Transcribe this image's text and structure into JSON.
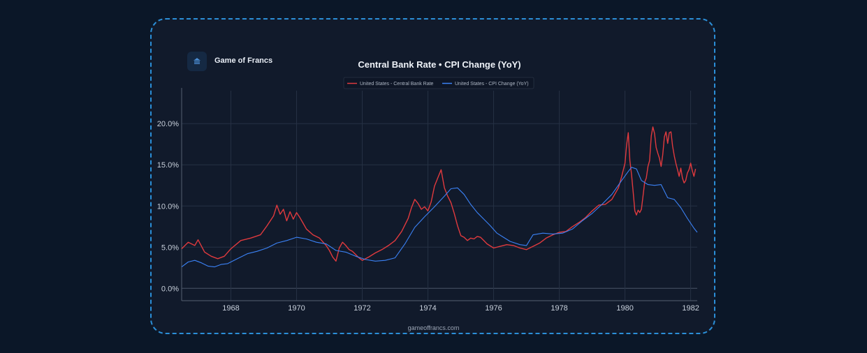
{
  "brand": {
    "name": "Game of Francs",
    "logo_icon": "game-of-francs-logo-icon"
  },
  "footer": {
    "text": "gameoffrancs.com"
  },
  "colors": {
    "background": "#0b1728",
    "panel": "#111a2b",
    "frame_border": "#2b8fd8",
    "central_bank_rate": "#e03a3e",
    "cpi_change": "#3b82f6",
    "grid": "#263144",
    "text": "#c9d1dc"
  },
  "chart_data": {
    "type": "line",
    "title": "Central Bank Rate • CPI Change (YoY)",
    "xlabel": "",
    "ylabel": "",
    "xlim": [
      1966.5,
      1982.2
    ],
    "ylim": [
      -1.5,
      24.0
    ],
    "x_ticks": [
      1968,
      1970,
      1972,
      1974,
      1976,
      1978,
      1980,
      1982
    ],
    "y_ticks": [
      0,
      5,
      10,
      15,
      20
    ],
    "y_tick_labels": [
      "0.0%",
      "5.0%",
      "10.0%",
      "15.0%",
      "20.0%"
    ],
    "grid": true,
    "legend": "top-center",
    "series": [
      {
        "name": "United States - Central Bank Rate",
        "color": "#e03a3e",
        "x": [
          1966.5,
          1966.7,
          1966.9,
          1967.0,
          1967.2,
          1967.4,
          1967.6,
          1967.8,
          1968.0,
          1968.3,
          1968.6,
          1968.9,
          1969.1,
          1969.3,
          1969.4,
          1969.5,
          1969.6,
          1969.7,
          1969.8,
          1969.9,
          1970.0,
          1970.1,
          1970.2,
          1970.3,
          1970.5,
          1970.7,
          1970.9,
          1971.0,
          1971.1,
          1971.2,
          1971.3,
          1971.4,
          1971.5,
          1971.6,
          1971.7,
          1971.8,
          1971.9,
          1972.0,
          1972.2,
          1972.4,
          1972.6,
          1972.8,
          1973.0,
          1973.2,
          1973.4,
          1973.5,
          1973.6,
          1973.7,
          1973.8,
          1973.9,
          1974.0,
          1974.1,
          1974.2,
          1974.3,
          1974.4,
          1974.5,
          1974.6,
          1974.7,
          1974.8,
          1974.9,
          1975.0,
          1975.1,
          1975.2,
          1975.3,
          1975.4,
          1975.5,
          1975.6,
          1975.7,
          1975.8,
          1976.0,
          1976.2,
          1976.4,
          1976.6,
          1976.8,
          1977.0,
          1977.2,
          1977.4,
          1977.6,
          1977.8,
          1978.0,
          1978.2,
          1978.4,
          1978.6,
          1978.8,
          1979.0,
          1979.2,
          1979.4,
          1979.6,
          1979.7,
          1979.8,
          1979.9,
          1980.0,
          1980.05,
          1980.1,
          1980.15,
          1980.2,
          1980.25,
          1980.3,
          1980.35,
          1980.4,
          1980.45,
          1980.5,
          1980.55,
          1980.6,
          1980.65,
          1980.7,
          1980.75,
          1980.8,
          1980.85,
          1980.9,
          1980.95,
          1981.0,
          1981.05,
          1981.1,
          1981.15,
          1981.2,
          1981.25,
          1981.3,
          1981.35,
          1981.4,
          1981.45,
          1981.5,
          1981.55,
          1981.6,
          1981.65,
          1981.7,
          1981.75,
          1981.8,
          1981.85,
          1981.9,
          1981.95,
          1982.0,
          1982.05,
          1982.1,
          1982.15
        ],
        "values": [
          4.8,
          5.6,
          5.2,
          5.9,
          4.4,
          3.9,
          3.6,
          3.9,
          4.8,
          5.8,
          6.1,
          6.5,
          7.6,
          8.8,
          10.1,
          9.0,
          9.6,
          8.2,
          9.3,
          8.4,
          9.2,
          8.6,
          7.9,
          7.2,
          6.5,
          6.1,
          5.2,
          4.6,
          3.8,
          3.3,
          4.9,
          5.6,
          5.2,
          4.7,
          4.5,
          4.1,
          3.7,
          3.4,
          3.8,
          4.3,
          4.7,
          5.2,
          5.8,
          6.9,
          8.5,
          9.8,
          10.8,
          10.3,
          9.6,
          9.9,
          9.4,
          10.5,
          12.4,
          13.4,
          14.4,
          12.2,
          11.2,
          10.4,
          9.1,
          7.6,
          6.4,
          6.2,
          5.8,
          6.1,
          6.0,
          6.3,
          6.2,
          5.8,
          5.4,
          4.9,
          5.1,
          5.3,
          5.2,
          4.9,
          4.7,
          5.1,
          5.5,
          6.1,
          6.5,
          6.8,
          6.9,
          7.5,
          8.0,
          8.6,
          9.4,
          10.1,
          10.2,
          10.8,
          11.5,
          12.2,
          13.6,
          15.2,
          17.4,
          18.9,
          15.5,
          13.8,
          11.7,
          9.4,
          8.9,
          9.5,
          9.2,
          9.6,
          11.2,
          12.9,
          13.4,
          14.8,
          15.5,
          18.5,
          19.6,
          18.8,
          17.1,
          16.4,
          15.8,
          14.8,
          16.2,
          18.4,
          19.0,
          17.6,
          18.9,
          19.0,
          17.3,
          16.1,
          15.2,
          14.4,
          13.6,
          14.6,
          13.4,
          12.8,
          13.1,
          14.0,
          14.4,
          15.2,
          14.3,
          13.6,
          14.5
        ]
      },
      {
        "name": "United States - CPI Change (YoY)",
        "color": "#3b82f6",
        "x": [
          1966.5,
          1966.7,
          1966.9,
          1967.1,
          1967.3,
          1967.5,
          1967.7,
          1967.9,
          1968.2,
          1968.5,
          1968.8,
          1969.1,
          1969.4,
          1969.7,
          1970.0,
          1970.3,
          1970.6,
          1970.9,
          1971.2,
          1971.5,
          1971.8,
          1972.1,
          1972.4,
          1972.7,
          1973.0,
          1973.3,
          1973.6,
          1973.9,
          1974.2,
          1974.5,
          1974.7,
          1974.9,
          1975.1,
          1975.3,
          1975.5,
          1975.7,
          1975.9,
          1976.1,
          1976.3,
          1976.5,
          1976.8,
          1977.0,
          1977.2,
          1977.5,
          1977.8,
          1978.1,
          1978.4,
          1978.7,
          1979.0,
          1979.3,
          1979.6,
          1979.9,
          1980.1,
          1980.2,
          1980.35,
          1980.5,
          1980.7,
          1980.9,
          1981.1,
          1981.3,
          1981.5,
          1981.7,
          1981.9,
          1982.1,
          1982.2
        ],
        "values": [
          2.6,
          3.2,
          3.4,
          3.1,
          2.7,
          2.6,
          2.9,
          3.0,
          3.6,
          4.2,
          4.5,
          4.9,
          5.5,
          5.8,
          6.2,
          6.0,
          5.6,
          5.4,
          4.6,
          4.4,
          3.9,
          3.5,
          3.3,
          3.4,
          3.7,
          5.4,
          7.4,
          8.7,
          9.9,
          11.2,
          12.1,
          12.2,
          11.4,
          10.2,
          9.2,
          8.4,
          7.6,
          6.7,
          6.2,
          5.7,
          5.3,
          5.2,
          6.5,
          6.7,
          6.6,
          6.7,
          7.2,
          8.2,
          9.1,
          10.2,
          11.4,
          13.1,
          14.2,
          14.7,
          14.5,
          13.1,
          12.6,
          12.5,
          12.6,
          11.0,
          10.8,
          9.8,
          8.5,
          7.3,
          6.8
        ]
      }
    ]
  }
}
